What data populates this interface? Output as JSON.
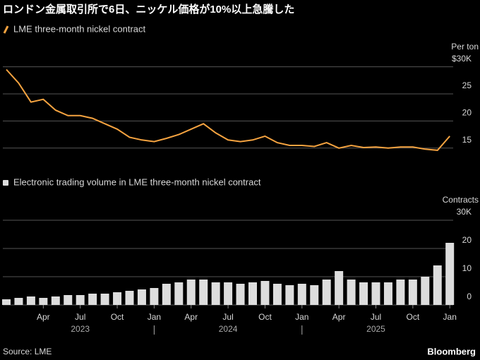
{
  "title": "ロンドン金属取引所で6日、ニッケル価格が10%以上急騰した",
  "source": "Source: LME",
  "credit": "Bloomberg",
  "chart_data": [
    {
      "type": "line",
      "x": [
        "2023-01",
        "2023-02",
        "2023-03",
        "2023-04",
        "2023-05",
        "2023-06",
        "2023-07",
        "2023-08",
        "2023-09",
        "2023-10",
        "2023-11",
        "2023-12",
        "2024-01",
        "2024-02",
        "2024-03",
        "2024-04",
        "2024-05",
        "2024-06",
        "2024-07",
        "2024-08",
        "2024-09",
        "2024-10",
        "2024-11",
        "2024-12",
        "2025-01",
        "2025-02",
        "2025-03",
        "2025-04",
        "2025-05",
        "2025-06",
        "2025-07",
        "2025-08",
        "2025-09",
        "2025-10",
        "2025-11",
        "2025-12",
        "2026-01"
      ],
      "series": [
        {
          "name": "LME three-month nickel contract",
          "color": "#f5a340",
          "values": [
            29.5,
            27,
            23.5,
            24,
            22,
            21,
            21,
            20.5,
            19.5,
            18.5,
            17,
            16.5,
            16.2,
            16.8,
            17.5,
            18.5,
            19.5,
            17.8,
            16.5,
            16.2,
            16.5,
            17.2,
            16,
            15.5,
            15.5,
            15.3,
            16,
            15,
            15.5,
            15.1,
            15.2,
            15,
            15.2,
            15.2,
            14.8,
            14.6,
            17.2
          ]
        }
      ],
      "y_label": "Per ton",
      "ylim": [
        12.5,
        31
      ],
      "yticks": [
        15,
        20,
        25,
        {
          "value": 30,
          "label": "$30K"
        }
      ],
      "grid": true
    },
    {
      "type": "bar",
      "x": [
        "2023-01",
        "2023-02",
        "2023-03",
        "2023-04",
        "2023-05",
        "2023-06",
        "2023-07",
        "2023-08",
        "2023-09",
        "2023-10",
        "2023-11",
        "2023-12",
        "2024-01",
        "2024-02",
        "2024-03",
        "2024-04",
        "2024-05",
        "2024-06",
        "2024-07",
        "2024-08",
        "2024-09",
        "2024-10",
        "2024-11",
        "2024-12",
        "2025-01",
        "2025-02",
        "2025-03",
        "2025-04",
        "2025-05",
        "2025-06",
        "2025-07",
        "2025-08",
        "2025-09",
        "2025-10",
        "2025-11",
        "2025-12",
        "2026-01"
      ],
      "series": [
        {
          "name": "Electronic trading volume in LME three-month nickel contract",
          "color": "#dddddd",
          "values": [
            2,
            2.5,
            3,
            2.5,
            3,
            3.5,
            3.5,
            4,
            4,
            4.5,
            5,
            5.5,
            6,
            7.5,
            8,
            9,
            9,
            8,
            8,
            7.5,
            8,
            8.5,
            7.5,
            7,
            7.5,
            7,
            9,
            12,
            9,
            8,
            8,
            8,
            9,
            9,
            10,
            14,
            22
          ]
        }
      ],
      "y_label": "Contracts",
      "ylim": [
        0,
        32
      ],
      "yticks": [
        0,
        10,
        20,
        {
          "value": 30,
          "label": "30K"
        }
      ],
      "grid": true,
      "xticks": [
        {
          "value": "2023-04",
          "label": "Apr"
        },
        {
          "value": "2023-07",
          "label": "Jul"
        },
        {
          "value": "2023-10",
          "label": "Oct"
        },
        {
          "value": "2024-01",
          "label": "Jan"
        },
        {
          "value": "2024-04",
          "label": "Apr"
        },
        {
          "value": "2024-07",
          "label": "Jul"
        },
        {
          "value": "2024-10",
          "label": "Oct"
        },
        {
          "value": "2025-01",
          "label": "Jan"
        },
        {
          "value": "2025-04",
          "label": "Apr"
        },
        {
          "value": "2025-07",
          "label": "Jul"
        },
        {
          "value": "2025-10",
          "label": "Oct"
        },
        {
          "value": "2026-01",
          "label": "Jan"
        }
      ],
      "year_labels": [
        {
          "value": "2023-07",
          "label": "2023"
        },
        {
          "value": "2024-07",
          "label": "2024"
        },
        {
          "value": "2025-07",
          "label": "2025"
        }
      ],
      "year_dividers": [
        "2024-01",
        "2025-01"
      ]
    }
  ]
}
